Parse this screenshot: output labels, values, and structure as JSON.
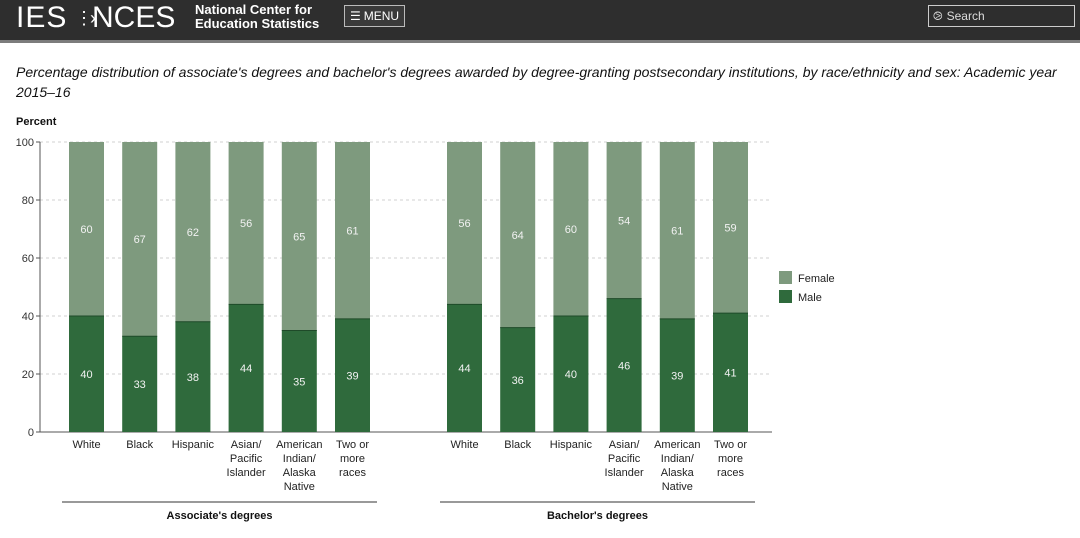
{
  "header": {
    "logo_ies": "IES",
    "logo_nces": "NCES",
    "org_line1": "National Center for",
    "org_line2": "Education Statistics",
    "menu_label": "MENU",
    "search_placeholder": "Search"
  },
  "chart_data": {
    "type": "bar",
    "stacked": true,
    "title": "Percentage distribution of associate's degrees and bachelor's degrees awarded by degree-granting postsecondary institutions, by race/ethnicity and sex: Academic year 2015–16",
    "ylabel": "Percent",
    "ylim": [
      0,
      100
    ],
    "yticks": [
      0,
      20,
      40,
      60,
      80,
      100
    ],
    "grid": true,
    "legend_position": "right",
    "colors": {
      "Male": "#2f6a3c",
      "Female": "#7e9a7e"
    },
    "legend": [
      "Female",
      "Male"
    ],
    "groups": [
      {
        "name": "Associate's degrees",
        "categories": [
          [
            "White"
          ],
          [
            "Black"
          ],
          [
            "Hispanic"
          ],
          [
            "Asian/",
            "Pacific",
            "Islander"
          ],
          [
            "American",
            "Indian/",
            "Alaska",
            "Native"
          ],
          [
            "Two or",
            "more",
            "races"
          ]
        ],
        "series": [
          {
            "name": "Male",
            "values": [
              40,
              33,
              38,
              44,
              35,
              39
            ]
          },
          {
            "name": "Female",
            "values": [
              60,
              67,
              62,
              56,
              65,
              61
            ]
          }
        ]
      },
      {
        "name": "Bachelor's degrees",
        "categories": [
          [
            "White"
          ],
          [
            "Black"
          ],
          [
            "Hispanic"
          ],
          [
            "Asian/",
            "Pacific",
            "Islander"
          ],
          [
            "American",
            "Indian/",
            "Alaska",
            "Native"
          ],
          [
            "Two or",
            "more",
            "races"
          ]
        ],
        "series": [
          {
            "name": "Male",
            "values": [
              44,
              36,
              40,
              46,
              39,
              41
            ]
          },
          {
            "name": "Female",
            "values": [
              56,
              64,
              60,
              54,
              61,
              59
            ]
          }
        ]
      }
    ]
  }
}
